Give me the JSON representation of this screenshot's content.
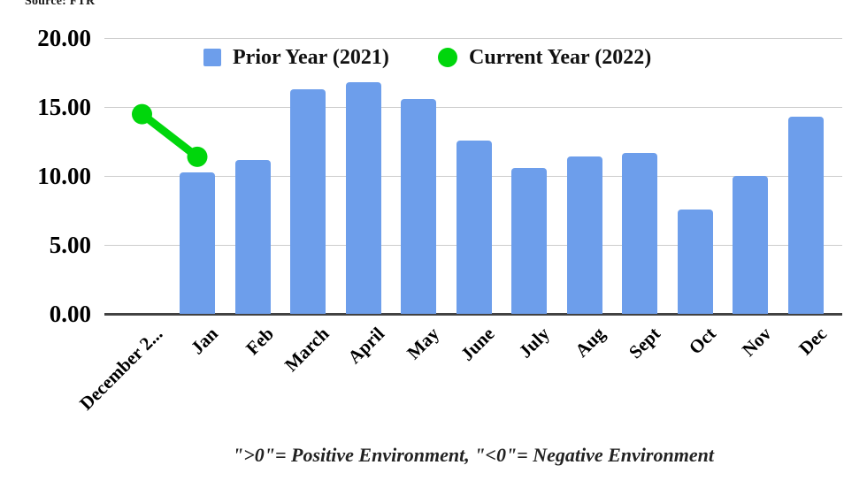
{
  "source_note": "Source: FTR",
  "footnote": "\">0\"= Positive Environment, \"<0\"= Negative Environment",
  "colors": {
    "bar_blue": "#6d9eeb",
    "line_green": "#00d60c",
    "gridline": "#cccccc",
    "axis_line": "#424242"
  },
  "legend": [
    {
      "label": "Prior Year (2021)",
      "marker": "square",
      "color": "#6d9eeb"
    },
    {
      "label": "Current Year (2022)",
      "marker": "circle",
      "color": "#00d60c"
    }
  ],
  "chart_data": {
    "type": "bar",
    "title": "",
    "xlabel": "",
    "ylabel": "",
    "categories": [
      "December 2...",
      "Jan",
      "Feb",
      "March",
      "April",
      "May",
      "June",
      "July",
      "Aug",
      "Sept",
      "Oct",
      "Nov",
      "Dec"
    ],
    "series": [
      {
        "name": "Prior Year (2021)",
        "type": "bar",
        "color": "#6d9eeb",
        "values": [
          null,
          10.3,
          11.2,
          16.3,
          16.8,
          15.6,
          12.6,
          10.6,
          11.4,
          11.7,
          7.6,
          10.0,
          14.3
        ]
      },
      {
        "name": "Current Year (2022)",
        "type": "line",
        "color": "#00d60c",
        "values": [
          14.5,
          11.4,
          null,
          null,
          null,
          null,
          null,
          null,
          null,
          null,
          null,
          null,
          null
        ]
      }
    ],
    "ylim": [
      0,
      20
    ],
    "yticks": [
      {
        "value": 20,
        "label": "20.00"
      },
      {
        "value": 15,
        "label": "15.00"
      },
      {
        "value": 10,
        "label": "10.00"
      },
      {
        "value": 5,
        "label": "5.00"
      },
      {
        "value": 0,
        "label": "0.00"
      }
    ],
    "grid": true,
    "legend_position": "top"
  }
}
